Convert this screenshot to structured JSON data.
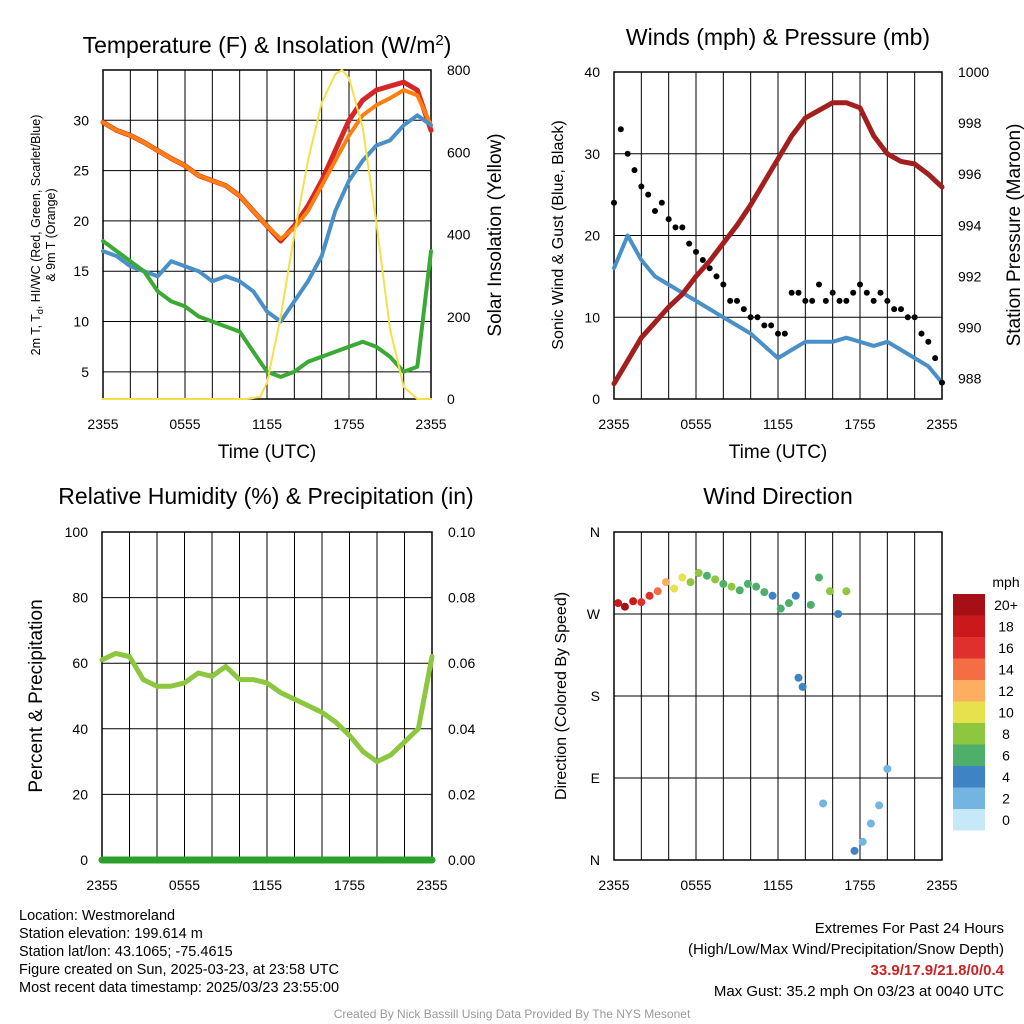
{
  "colors": {
    "red": "#d62728",
    "orange": "#ff7f0e",
    "green": "#3aaa35",
    "blue": "#4a90c8",
    "yellow": "#f5e04a",
    "maroon": "#a31f1f",
    "black": "#000000",
    "rh_green": "#8dc63f",
    "precip_green": "#2ca02c",
    "credit_gray": "#9a9a9a",
    "extremes_red": "#cc2222"
  },
  "panels": {
    "temperature": {
      "title_main": "Temperature (F) & Insolation (W/m",
      "title_sup": "2",
      "title_end": ")",
      "ylabel_line1": "2m T, T",
      "ylabel_sub": "d",
      "ylabel_line1_end": ", HI/WC (Red, Green, Scarlet/Blue)",
      "ylabel_line2": "& 9m T (Orange)",
      "y2label": "Solar Insolation (Yellow)",
      "xlabel": "Time (UTC)"
    },
    "winds": {
      "title": "Winds (mph) & Pressure (mb)",
      "ylabel": "Sonic Wind & Gust (Blue, Black)",
      "y2label": "Station Pressure (Maroon)",
      "xlabel": "Time (UTC)"
    },
    "humidity": {
      "title": "Relative Humidity (%) & Precipitation (in)",
      "ylabel": "Percent & Precipitation"
    },
    "direction": {
      "title": "Wind Direction",
      "ylabel": "Direction (Colored By Speed)",
      "legend_title": "mph"
    }
  },
  "info_left": {
    "location": "Location: Westmoreland",
    "elevation": "Station elevation: 199.614 m",
    "latlon": "Station lat/lon: 43.1065; -75.4615",
    "created": "Figure created on Sun, 2025-03-23, at 23:58 UTC",
    "recent": "Most recent data timestamp: 2025/03/23 23:55:00"
  },
  "info_right": {
    "line1": "Extremes For Past 24 Hours",
    "line2": "(High/Low/Max Wind/Precipitation/Snow Depth)",
    "values": "33.9/17.9/21.8/0/0.4",
    "gust": "Max Gust: 35.2 mph On 03/23 at 0040 UTC"
  },
  "credit": "Created By Nick Bassill Using Data Provided By The NYS Mesonet",
  "chart_data": [
    {
      "type": "line",
      "title": "Temperature (F) & Insolation (W/m2)",
      "xlabel": "Time (UTC)",
      "ylabel": "2m T, Td, HI/WC (Red, Green, Scarlet/Blue) & 9m T (Orange)",
      "y2label": "Solar Insolation (Yellow)",
      "x_ticks": [
        "2355",
        "0555",
        "1155",
        "1755",
        "2355"
      ],
      "x_hours": [
        0,
        2,
        4,
        6,
        8,
        10,
        12,
        14,
        16,
        18,
        20,
        22,
        24
      ],
      "ylim": [
        2.3,
        35
      ],
      "y_ticks": [
        5,
        10,
        15,
        20,
        25,
        30
      ],
      "y2lim": [
        0,
        800
      ],
      "y2_ticks": [
        0,
        200,
        400,
        600,
        800
      ],
      "series": [
        {
          "name": "2m T",
          "color": "red",
          "x": [
            0,
            1,
            2,
            3,
            4,
            5,
            6,
            7,
            8,
            9,
            10,
            11,
            12,
            13,
            14,
            15,
            16,
            17,
            18,
            19,
            20,
            21,
            22,
            23,
            24
          ],
          "values": [
            29.8,
            29,
            28.5,
            27.8,
            27,
            26.2,
            25.5,
            24.5,
            24,
            23.5,
            22.5,
            21,
            19.5,
            18,
            19.5,
            21.5,
            24,
            27,
            30,
            32,
            33,
            33.4,
            33.8,
            33,
            29
          ]
        },
        {
          "name": "9m T",
          "color": "orange",
          "x": [
            0,
            1,
            2,
            3,
            4,
            5,
            6,
            7,
            8,
            9,
            10,
            11,
            12,
            13,
            14,
            15,
            16,
            17,
            18,
            19,
            20,
            21,
            22,
            23,
            24
          ],
          "values": [
            29.8,
            29,
            28.5,
            27.8,
            27,
            26.2,
            25.5,
            24.5,
            24,
            23.5,
            22.5,
            21,
            19.5,
            18.2,
            19.3,
            21,
            23.5,
            26,
            28.5,
            30.5,
            31.5,
            32.2,
            33,
            32.5,
            29.5
          ]
        },
        {
          "name": "WC",
          "color": "blue",
          "x": [
            0,
            1,
            2,
            3,
            4,
            5,
            6,
            7,
            8,
            9,
            10,
            11,
            12,
            13,
            14,
            15,
            16,
            17,
            18,
            19,
            20,
            21,
            22,
            23,
            24
          ],
          "values": [
            17,
            16.5,
            15.5,
            15,
            14.5,
            16,
            15.5,
            15,
            14,
            14.5,
            14,
            13,
            11,
            10,
            12,
            14,
            16.5,
            21,
            24,
            26,
            27.5,
            28,
            29.5,
            30.5,
            29.5
          ]
        },
        {
          "name": "Td",
          "color": "green",
          "x": [
            0,
            1,
            2,
            3,
            4,
            5,
            6,
            7,
            8,
            9,
            10,
            11,
            12,
            13,
            14,
            15,
            16,
            17,
            18,
            19,
            20,
            21,
            22,
            23,
            24
          ],
          "values": [
            18,
            17,
            16,
            15,
            13,
            12,
            11.5,
            10.5,
            10,
            9.5,
            9,
            7,
            5,
            4.5,
            5,
            6,
            6.5,
            7,
            7.5,
            8,
            7.5,
            6.5,
            5,
            5.5,
            17
          ]
        },
        {
          "name": "Solar Insolation",
          "color": "yellow",
          "axis": "y2",
          "x": [
            0,
            10.5,
            11.5,
            12,
            13,
            14,
            15,
            16,
            17,
            17.5,
            18,
            19,
            20,
            21,
            22,
            23,
            24
          ],
          "values": [
            0,
            0,
            5,
            40,
            200,
            400,
            580,
            720,
            790,
            800,
            780,
            660,
            430,
            170,
            30,
            0,
            0
          ]
        }
      ]
    },
    {
      "type": "line",
      "title": "Winds (mph) & Pressure (mb)",
      "xlabel": "Time (UTC)",
      "ylabel": "Sonic Wind & Gust (Blue, Black)",
      "y2label": "Station Pressure (Maroon)",
      "x_ticks": [
        "2355",
        "0555",
        "1155",
        "1755",
        "2355"
      ],
      "ylim": [
        0,
        40
      ],
      "y_ticks": [
        0,
        10,
        20,
        30,
        40
      ],
      "y2lim": [
        987.2,
        1000
      ],
      "y2_ticks": [
        988,
        990,
        992,
        994,
        996,
        998,
        1000
      ],
      "series": [
        {
          "name": "Sonic Wind",
          "color": "blue",
          "x": [
            0,
            1,
            2,
            3,
            4,
            5,
            6,
            7,
            8,
            9,
            10,
            11,
            12,
            13,
            14,
            15,
            16,
            17,
            18,
            19,
            20,
            21,
            22,
            23,
            24
          ],
          "values": [
            16,
            20,
            17,
            15,
            14,
            13,
            12,
            11,
            10,
            9,
            8,
            6.5,
            5,
            6,
            7,
            7,
            7,
            7.5,
            7,
            6.5,
            7,
            6,
            5,
            4,
            2
          ]
        },
        {
          "name": "Gust",
          "color": "black",
          "type": "scatter",
          "x": [
            0,
            0.5,
            1,
            1.5,
            2,
            2.5,
            3,
            3.5,
            4,
            4.5,
            5,
            5.5,
            6,
            6.5,
            7,
            7.5,
            8,
            8.5,
            9,
            9.5,
            10,
            10.5,
            11,
            11.5,
            12,
            12.5,
            13,
            13.5,
            14,
            14.5,
            15,
            15.5,
            16,
            16.5,
            17,
            17.5,
            18,
            18.5,
            19,
            19.5,
            20,
            20.5,
            21,
            21.5,
            22,
            22.5,
            23,
            23.5,
            24
          ],
          "values": [
            24,
            33,
            30,
            28,
            26,
            25,
            23,
            24,
            22,
            21,
            21,
            19,
            18,
            17,
            16,
            15,
            14,
            12,
            12,
            11,
            10,
            10,
            9,
            9,
            8,
            8,
            13,
            13,
            12,
            12,
            14,
            12,
            13,
            12,
            12,
            13,
            14,
            13,
            12,
            13,
            12,
            11,
            11,
            10,
            10,
            8,
            7,
            5,
            2
          ]
        },
        {
          "name": "Station Pressure",
          "color": "maroon",
          "axis": "y2",
          "x": [
            0,
            1,
            2,
            3,
            4,
            5,
            6,
            7,
            8,
            9,
            10,
            11,
            12,
            13,
            14,
            15,
            16,
            17,
            18,
            19,
            20,
            21,
            22,
            23,
            24
          ],
          "values": [
            987.8,
            988.7,
            989.6,
            990.2,
            990.8,
            991.3,
            992,
            992.6,
            993.3,
            994,
            994.8,
            995.7,
            996.6,
            997.5,
            998.2,
            998.5,
            998.8,
            998.8,
            998.6,
            997.5,
            996.8,
            996.5,
            996.4,
            996,
            995.5
          ]
        }
      ]
    },
    {
      "type": "line",
      "title": "Relative Humidity (%) & Precipitation (in)",
      "ylabel": "Percent & Precipitation",
      "x_ticks": [
        "2355",
        "0555",
        "1155",
        "1755",
        "2355"
      ],
      "ylim": [
        0,
        100
      ],
      "y_ticks": [
        0,
        20,
        40,
        60,
        80,
        100
      ],
      "y2lim": [
        0,
        0.1
      ],
      "y2_ticks": [
        "0.00",
        "0.02",
        "0.04",
        "0.06",
        "0.08",
        "0.10"
      ],
      "series": [
        {
          "name": "Relative Humidity",
          "color": "rh_green",
          "x": [
            0,
            1,
            2,
            3,
            4,
            5,
            6,
            7,
            8,
            9,
            10,
            11,
            12,
            13,
            14,
            15,
            16,
            17,
            18,
            19,
            20,
            21,
            22,
            23,
            24
          ],
          "values": [
            61,
            63,
            62,
            55,
            53,
            53,
            54,
            57,
            56,
            59,
            55,
            55,
            54,
            51,
            49,
            47,
            45,
            42,
            38,
            33,
            30,
            32,
            36,
            40,
            62
          ]
        },
        {
          "name": "Precipitation",
          "color": "precip_green",
          "axis": "y2",
          "x": [
            0,
            24
          ],
          "values": [
            0,
            0
          ]
        }
      ]
    },
    {
      "type": "scatter",
      "title": "Wind Direction",
      "ylabel": "Direction (Colored By Speed)",
      "x_ticks": [
        "2355",
        "0555",
        "1155",
        "1755",
        "2355"
      ],
      "y_ticks": [
        "N",
        "E",
        "S",
        "W",
        "N"
      ],
      "ylim": [
        0,
        360
      ],
      "legend": {
        "title": "mph",
        "labels": [
          "20+",
          "18",
          "16",
          "14",
          "12",
          "10",
          "8",
          "6",
          "4",
          "2",
          "0"
        ],
        "colors": [
          "#a50f15",
          "#cb181d",
          "#e0302b",
          "#f46d43",
          "#fdae61",
          "#e6e14c",
          "#8dc63f",
          "#4daf6a",
          "#3e84c5",
          "#74b4e3",
          "#c6e8f8"
        ]
      },
      "points": [
        {
          "t": 0.3,
          "dir": 282,
          "spd": 18
        },
        {
          "t": 0.8,
          "dir": 278,
          "spd": 19
        },
        {
          "t": 1.4,
          "dir": 284,
          "spd": 17
        },
        {
          "t": 2.0,
          "dir": 283,
          "spd": 16
        },
        {
          "t": 2.6,
          "dir": 290,
          "spd": 15
        },
        {
          "t": 3.2,
          "dir": 295,
          "spd": 13
        },
        {
          "t": 3.8,
          "dir": 305,
          "spd": 11
        },
        {
          "t": 4.4,
          "dir": 298,
          "spd": 10
        },
        {
          "t": 5.0,
          "dir": 310,
          "spd": 9
        },
        {
          "t": 5.6,
          "dir": 305,
          "spd": 8
        },
        {
          "t": 6.2,
          "dir": 315,
          "spd": 7
        },
        {
          "t": 6.8,
          "dir": 312,
          "spd": 6
        },
        {
          "t": 7.4,
          "dir": 308,
          "spd": 7
        },
        {
          "t": 8.0,
          "dir": 303,
          "spd": 6
        },
        {
          "t": 8.6,
          "dir": 300,
          "spd": 7
        },
        {
          "t": 9.2,
          "dir": 296,
          "spd": 6
        },
        {
          "t": 9.8,
          "dir": 303,
          "spd": 5
        },
        {
          "t": 10.4,
          "dir": 300,
          "spd": 6
        },
        {
          "t": 11.0,
          "dir": 294,
          "spd": 5
        },
        {
          "t": 11.6,
          "dir": 290,
          "spd": 4
        },
        {
          "t": 12.2,
          "dir": 276,
          "spd": 6
        },
        {
          "t": 12.8,
          "dir": 282,
          "spd": 5
        },
        {
          "t": 13.3,
          "dir": 290,
          "spd": 4
        },
        {
          "t": 13.5,
          "dir": 200,
          "spd": 3
        },
        {
          "t": 13.8,
          "dir": 190,
          "spd": 3
        },
        {
          "t": 14.4,
          "dir": 280,
          "spd": 6
        },
        {
          "t": 15.0,
          "dir": 310,
          "spd": 5
        },
        {
          "t": 15.3,
          "dir": 62,
          "spd": 1
        },
        {
          "t": 15.8,
          "dir": 295,
          "spd": 7
        },
        {
          "t": 16.4,
          "dir": 270,
          "spd": 4
        },
        {
          "t": 17.0,
          "dir": 295,
          "spd": 7
        },
        {
          "t": 17.6,
          "dir": 10,
          "spd": 3
        },
        {
          "t": 18.2,
          "dir": 20,
          "spd": 2
        },
        {
          "t": 18.8,
          "dir": 40,
          "spd": 2
        },
        {
          "t": 19.4,
          "dir": 60,
          "spd": 2
        },
        {
          "t": 20.0,
          "dir": 100,
          "spd": 2
        }
      ]
    }
  ]
}
